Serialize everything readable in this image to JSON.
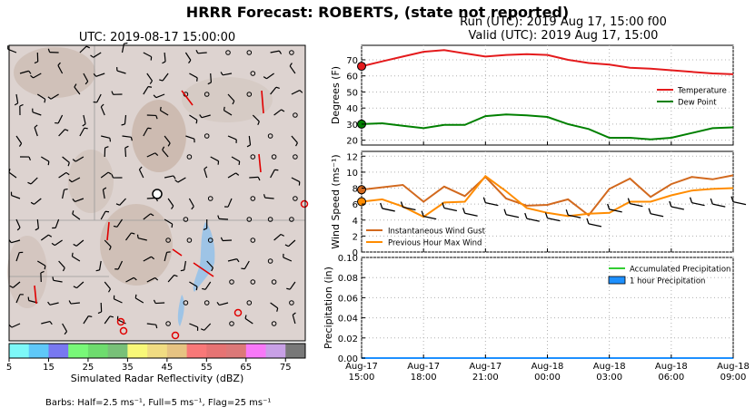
{
  "page": {
    "title": "HRRR Forecast: ROBERTS, (state not reported)",
    "run_text": "Run (UTC): 2019 Aug 17, 15:00 f00",
    "valid_text": "Valid (UTC): 2019 Aug 17, 15:00"
  },
  "map": {
    "title": "UTC: 2019-08-17 15:00:00",
    "colorbar_label": "Simulated Radar Reflectivity (dBZ)",
    "colorbar_ticks": [
      "5",
      "15",
      "25",
      "35",
      "45",
      "55",
      "65",
      "75"
    ],
    "colorbar_colors": [
      "#7df8f8",
      "#5fc8f8",
      "#7878f0",
      "#78f878",
      "#6edc6e",
      "#78c078",
      "#f8f878",
      "#f0dc82",
      "#e6c382",
      "#f87878",
      "#e67373",
      "#dc7878",
      "#f878f8",
      "#c8a0e6",
      "#787878"
    ],
    "barbs_note": "Barbs: Half=2.5 ms⁻¹, Full=5 ms⁻¹, Flag=25 ms⁻¹"
  },
  "chart_data": [
    {
      "type": "line",
      "panel": "temperature",
      "ylabel": "Degrees (F)",
      "ylim": [
        17,
        79
      ],
      "yticks": [
        20,
        30,
        40,
        50,
        60,
        70
      ],
      "x_hours": [
        0,
        1,
        2,
        3,
        4,
        5,
        6,
        7,
        8,
        9,
        10,
        11,
        12,
        13,
        14,
        15,
        16,
        17,
        18
      ],
      "series": [
        {
          "name": "Temperature",
          "color": "#e41a1c",
          "values": [
            66,
            69,
            72,
            75,
            76,
            74,
            72,
            73,
            73.5,
            73,
            70,
            68,
            67,
            65,
            64.5,
            63.5,
            62.5,
            61.5,
            61
          ]
        },
        {
          "name": "Dew Point",
          "color": "#008000",
          "values": [
            30,
            30.5,
            29,
            27.5,
            29.5,
            29.5,
            35,
            36,
            35.5,
            34.5,
            30,
            27,
            21.5,
            21.5,
            20.5,
            21.5,
            24.5,
            27.5,
            28
          ]
        }
      ],
      "legend": "right"
    },
    {
      "type": "line",
      "panel": "wind",
      "ylabel": "Wind Speed (ms⁻¹)",
      "ylim": [
        0,
        12.6
      ],
      "yticks": [
        0,
        2,
        4,
        6,
        8,
        10,
        12
      ],
      "x_hours": [
        0,
        1,
        2,
        3,
        4,
        5,
        6,
        7,
        8,
        9,
        10,
        11,
        12,
        13,
        14,
        15,
        16,
        17,
        18
      ],
      "series": [
        {
          "name": "Instantaneous Wind Gust",
          "color": "#d2691e",
          "values": [
            7.8,
            8.1,
            8.4,
            6.3,
            8.2,
            7.0,
            9.4,
            6.7,
            5.8,
            5.9,
            6.6,
            4.6,
            7.9,
            9.2,
            6.9,
            8.5,
            9.4,
            9.1,
            9.6
          ]
        },
        {
          "name": "Previous Hour Max Wind",
          "color": "#ff8c00",
          "values": [
            6.3,
            6.6,
            5.7,
            4.4,
            6.2,
            6.3,
            9.5,
            7.6,
            5.5,
            4.9,
            4.5,
            4.8,
            4.9,
            6.3,
            6.3,
            7.1,
            7.7,
            7.9,
            8.0
          ]
        }
      ],
      "legend": "lower-left"
    },
    {
      "type": "bar",
      "panel": "precipitation",
      "ylabel": "Precipitation (in)",
      "ylim": [
        0,
        0.1
      ],
      "yticks": [
        "0.00",
        "0.02",
        "0.04",
        "0.06",
        "0.08",
        "0.10"
      ],
      "xtick_labels": [
        {
          "date": "Aug-17",
          "time": "15:00"
        },
        {
          "date": "Aug-17",
          "time": "18:00"
        },
        {
          "date": "Aug-17",
          "time": "21:00"
        },
        {
          "date": "Aug-18",
          "time": "00:00"
        },
        {
          "date": "Aug-18",
          "time": "03:00"
        },
        {
          "date": "Aug-18",
          "time": "06:00"
        },
        {
          "date": "Aug-18",
          "time": "09:00"
        }
      ],
      "series": [
        {
          "name": "Accumulated Precipitation",
          "color": "#32cd32",
          "values": [
            0,
            0,
            0,
            0,
            0,
            0,
            0,
            0,
            0,
            0,
            0,
            0,
            0,
            0,
            0,
            0,
            0,
            0,
            0
          ]
        },
        {
          "name": "1 hour Precipitation",
          "color": "#1e90ff",
          "values": [
            0,
            0,
            0,
            0,
            0,
            0,
            0,
            0,
            0,
            0,
            0,
            0,
            0,
            0,
            0,
            0,
            0,
            0,
            0
          ]
        }
      ],
      "legend": "top-right"
    }
  ]
}
